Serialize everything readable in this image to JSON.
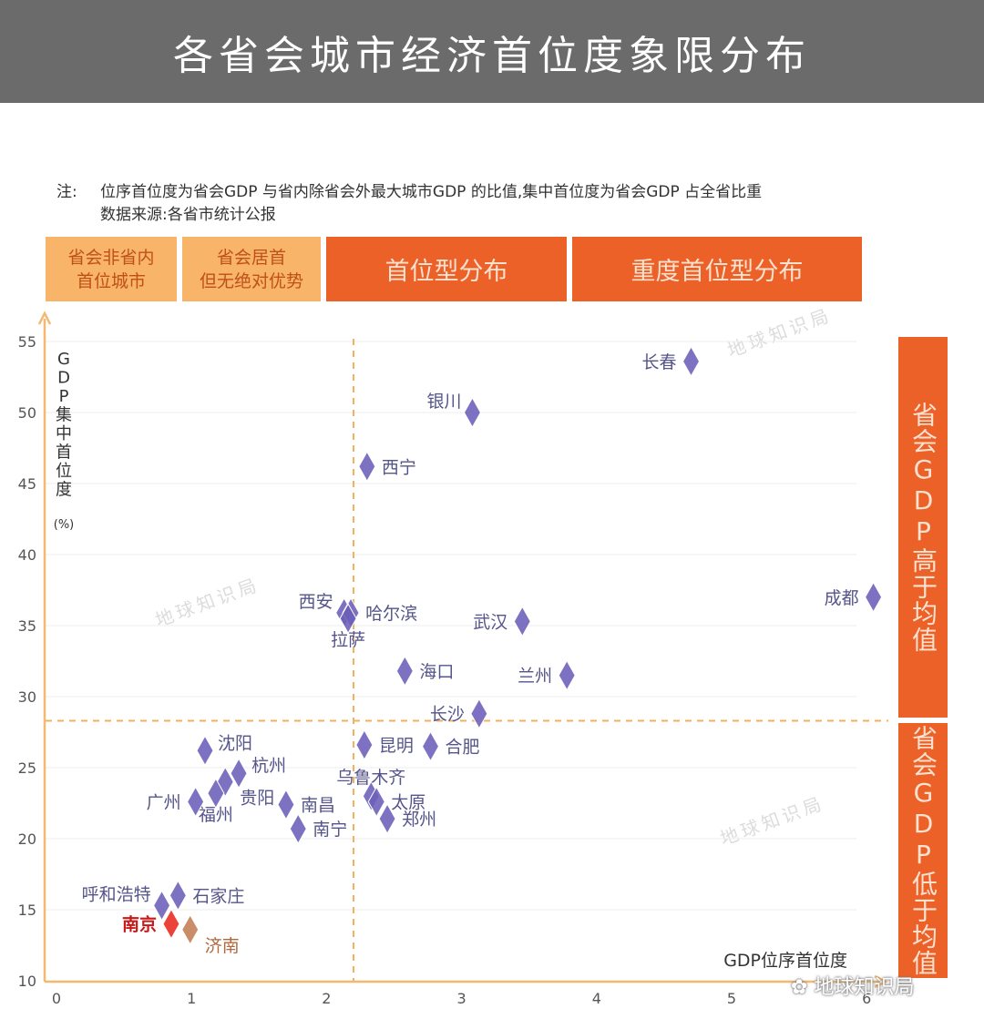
{
  "header": {
    "title": "各省会城市经济首位度象限分布"
  },
  "note": {
    "label": "注:",
    "line1": "位序首位度为省会GDP 与省内除省会外最大城市GDP 的比值,集中首位度为省会GDP 占全省比重",
    "line2": "数据来源:各省市统计公报"
  },
  "categories": {
    "cat1": "省会非省内\n首位城市",
    "cat2": "省会居首\n但无绝对优势",
    "cat3": "首位型分布",
    "cat4": "重度首位型分布"
  },
  "side_labels": {
    "high": "省会GDP高于均值",
    "low": "省会GDP低于均值"
  },
  "watermark": "地球知识局",
  "footer": {
    "logo": "地球知识局",
    "icon": "wechat-icon"
  },
  "colors": {
    "point": "#6b5fb8",
    "nanjing": "#e8281e",
    "jinan": "#c27d55",
    "axis": "#f4b870",
    "dashed": "#f0b060",
    "grid": "#eeeeee",
    "label": "#55558a",
    "header_bg": "#6b6b6b",
    "category_dark": "#ec6128",
    "category_light": "#f8b468"
  },
  "chart_data": {
    "type": "scatter",
    "title": "各省会城市经济首位度象限分布",
    "xlabel": "GDP位序首位度",
    "ylabel": "GDP集中首位度",
    "ylabel_unit": "(%)",
    "xlim": [
      0,
      6.05
    ],
    "ylim": [
      10,
      56
    ],
    "xticks": [
      0,
      1,
      2,
      3,
      4,
      5,
      6
    ],
    "yticks": [
      10,
      15,
      20,
      25,
      30,
      35,
      40,
      45,
      50,
      55
    ],
    "grid": true,
    "reference_lines": {
      "x": 2.2,
      "y": 28.3
    },
    "points": [
      {
        "name": "长春",
        "x": 4.7,
        "y": 53.6,
        "label_pos": "left"
      },
      {
        "name": "银川",
        "x": 3.08,
        "y": 50.0,
        "label_pos": "upper-left"
      },
      {
        "name": "西宁",
        "x": 2.3,
        "y": 46.2,
        "label_pos": "right"
      },
      {
        "name": "成都",
        "x": 6.05,
        "y": 37.0,
        "label_pos": "left"
      },
      {
        "name": "西安",
        "x": 2.13,
        "y": 35.9,
        "label_pos": "upper-left"
      },
      {
        "name": "哈尔滨",
        "x": 2.18,
        "y": 35.9,
        "label_pos": "right"
      },
      {
        "name": "拉萨",
        "x": 2.16,
        "y": 35.5,
        "label_pos": "below"
      },
      {
        "name": "武汉",
        "x": 3.45,
        "y": 35.3,
        "label_pos": "left"
      },
      {
        "name": "海口",
        "x": 2.58,
        "y": 31.8,
        "label_pos": "right"
      },
      {
        "name": "兰州",
        "x": 3.78,
        "y": 31.5,
        "label_pos": "left"
      },
      {
        "name": "长沙",
        "x": 3.13,
        "y": 28.8,
        "label_pos": "left"
      },
      {
        "name": "沈阳",
        "x": 1.1,
        "y": 26.2,
        "label_pos": "upper-right"
      },
      {
        "name": "昆明",
        "x": 2.28,
        "y": 26.6,
        "label_pos": "right"
      },
      {
        "name": "合肥",
        "x": 2.77,
        "y": 26.5,
        "label_pos": "right"
      },
      {
        "name": "杭州",
        "x": 1.35,
        "y": 24.6,
        "label_pos": "upper-right"
      },
      {
        "name": "贵阳",
        "x": 1.25,
        "y": 24.0,
        "label_pos": "lower-right"
      },
      {
        "name": "福州",
        "x": 1.18,
        "y": 23.2,
        "label_pos": "below"
      },
      {
        "name": "广州",
        "x": 1.03,
        "y": 22.6,
        "label_pos": "left"
      },
      {
        "name": "南昌",
        "x": 1.7,
        "y": 22.4,
        "label_pos": "right"
      },
      {
        "name": "乌鲁木齐",
        "x": 2.33,
        "y": 23.0,
        "label_pos": "above"
      },
      {
        "name": "太原",
        "x": 2.37,
        "y": 22.6,
        "label_pos": "right"
      },
      {
        "name": "郑州",
        "x": 2.45,
        "y": 21.4,
        "label_pos": "right"
      },
      {
        "name": "南宁",
        "x": 1.79,
        "y": 20.7,
        "label_pos": "right"
      },
      {
        "name": "石家庄",
        "x": 0.9,
        "y": 16.0,
        "label_pos": "right"
      },
      {
        "name": "呼和浩特",
        "x": 0.78,
        "y": 15.3,
        "label_pos": "upper-left"
      },
      {
        "name": "南京",
        "x": 0.85,
        "y": 14.0,
        "label_pos": "left",
        "highlight": "nanjing"
      },
      {
        "name": "济南",
        "x": 0.99,
        "y": 13.6,
        "label_pos": "lower-right",
        "highlight": "jinan"
      }
    ]
  }
}
